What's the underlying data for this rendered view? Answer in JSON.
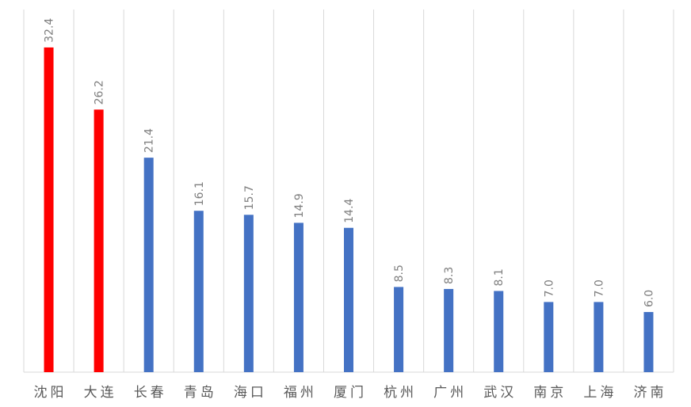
{
  "chart_data": {
    "type": "bar",
    "categories": [
      "沈阳",
      "大连",
      "长春",
      "青岛",
      "海口",
      "福州",
      "厦门",
      "杭州",
      "广州",
      "武汉",
      "南京",
      "上海",
      "济南"
    ],
    "values": [
      32.4,
      26.2,
      21.4,
      16.1,
      15.7,
      14.9,
      14.4,
      8.5,
      8.3,
      8.1,
      7.0,
      7.0,
      6.0
    ],
    "value_labels": [
      "32.4",
      "26.2",
      "21.4",
      "16.1",
      "15.7",
      "14.9",
      "14.4",
      "8.5",
      "8.3",
      "8.1",
      "7.0",
      "7.0",
      "6.0"
    ],
    "colors": [
      "#ff0000",
      "#ff0000",
      "#4472c4",
      "#4472c4",
      "#4472c4",
      "#4472c4",
      "#4472c4",
      "#4472c4",
      "#4472c4",
      "#4472c4",
      "#4472c4",
      "#4472c4",
      "#4472c4"
    ],
    "ylim": [
      0,
      35
    ]
  }
}
